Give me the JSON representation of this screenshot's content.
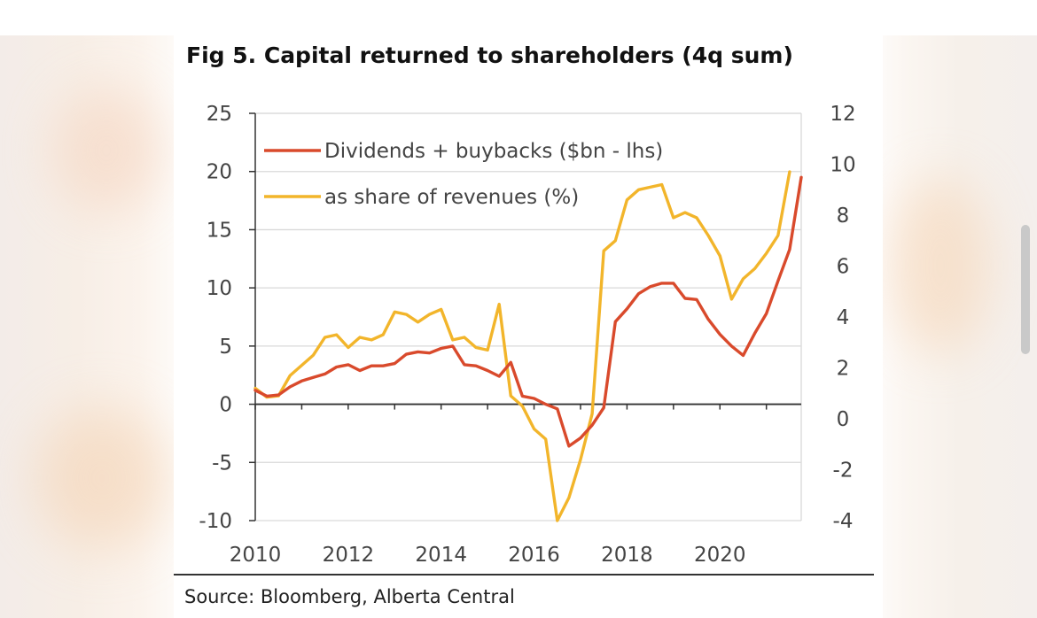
{
  "chart_data": {
    "type": "line",
    "title": "Fig 5. Capital returned to shareholders (4q sum)",
    "source": "Source: Bloomberg, Alberta Central",
    "x_axis": {
      "range": [
        2010,
        2021.75
      ],
      "tick_labels": [
        "2010",
        "2012",
        "2014",
        "2016",
        "2018",
        "2020"
      ],
      "tick_values": [
        2010,
        2012,
        2014,
        2016,
        2018,
        2020
      ]
    },
    "y_axis_left": {
      "range": [
        -10,
        25
      ],
      "tick_labels": [
        "-10",
        "-5",
        "0",
        "5",
        "10",
        "15",
        "20",
        "25"
      ],
      "tick_values": [
        -10,
        -5,
        0,
        5,
        10,
        15,
        20,
        25
      ]
    },
    "y_axis_right": {
      "range": [
        -4,
        12
      ],
      "tick_labels": [
        "-4",
        "-2",
        "0",
        "2",
        "4",
        "6",
        "8",
        "10",
        "12"
      ],
      "tick_values": [
        -4,
        -2,
        0,
        2,
        4,
        6,
        8,
        10,
        12
      ]
    },
    "legend_position": "top-left",
    "series": [
      {
        "name": "Dividends + buybacks ($bn - lhs)",
        "axis": "left",
        "color": "#d94a2c",
        "points": [
          [
            2010.0,
            1.2
          ],
          [
            2010.25,
            0.7
          ],
          [
            2010.5,
            0.8
          ],
          [
            2010.75,
            1.5
          ],
          [
            2011.0,
            2.0
          ],
          [
            2011.25,
            2.3
          ],
          [
            2011.5,
            2.6
          ],
          [
            2011.75,
            3.2
          ],
          [
            2012.0,
            3.4
          ],
          [
            2012.25,
            2.9
          ],
          [
            2012.5,
            3.3
          ],
          [
            2012.75,
            3.3
          ],
          [
            2013.0,
            3.5
          ],
          [
            2013.25,
            4.3
          ],
          [
            2013.5,
            4.5
          ],
          [
            2013.75,
            4.4
          ],
          [
            2014.0,
            4.8
          ],
          [
            2014.25,
            5.0
          ],
          [
            2014.5,
            3.4
          ],
          [
            2014.75,
            3.3
          ],
          [
            2015.0,
            2.9
          ],
          [
            2015.25,
            2.4
          ],
          [
            2015.5,
            3.6
          ],
          [
            2015.75,
            0.7
          ],
          [
            2016.0,
            0.5
          ],
          [
            2016.25,
            0.0
          ],
          [
            2016.5,
            -0.4
          ],
          [
            2016.75,
            -3.6
          ],
          [
            2017.0,
            -2.9
          ],
          [
            2017.25,
            -1.8
          ],
          [
            2017.5,
            -0.3
          ],
          [
            2017.75,
            7.1
          ],
          [
            2018.0,
            8.2
          ],
          [
            2018.25,
            9.5
          ],
          [
            2018.5,
            10.1
          ],
          [
            2018.75,
            10.4
          ],
          [
            2019.0,
            10.4
          ],
          [
            2019.25,
            9.1
          ],
          [
            2019.5,
            9.0
          ],
          [
            2019.75,
            7.3
          ],
          [
            2020.0,
            6.0
          ],
          [
            2020.25,
            5.0
          ],
          [
            2020.5,
            4.2
          ],
          [
            2020.75,
            6.1
          ],
          [
            2021.0,
            7.8
          ],
          [
            2021.25,
            10.6
          ],
          [
            2021.5,
            13.3
          ],
          [
            2021.75,
            19.5
          ]
        ]
      },
      {
        "name": "as share of revenues (%)",
        "axis": "right",
        "color": "#f2b52b",
        "points": [
          [
            2010.0,
            1.2
          ],
          [
            2010.25,
            0.85
          ],
          [
            2010.5,
            0.9
          ],
          [
            2010.75,
            1.7
          ],
          [
            2011.0,
            2.1
          ],
          [
            2011.25,
            2.5
          ],
          [
            2011.5,
            3.2
          ],
          [
            2011.75,
            3.3
          ],
          [
            2012.0,
            2.8
          ],
          [
            2012.25,
            3.2
          ],
          [
            2012.5,
            3.1
          ],
          [
            2012.75,
            3.3
          ],
          [
            2013.0,
            4.2
          ],
          [
            2013.25,
            4.1
          ],
          [
            2013.5,
            3.8
          ],
          [
            2013.75,
            4.1
          ],
          [
            2014.0,
            4.3
          ],
          [
            2014.25,
            3.1
          ],
          [
            2014.5,
            3.2
          ],
          [
            2014.75,
            2.8
          ],
          [
            2015.0,
            2.7
          ],
          [
            2015.25,
            4.5
          ],
          [
            2015.5,
            0.9
          ],
          [
            2015.75,
            0.5
          ],
          [
            2016.0,
            -0.4
          ],
          [
            2016.25,
            -0.8
          ],
          [
            2016.5,
            -4.0
          ],
          [
            2016.75,
            -3.1
          ],
          [
            2017.0,
            -1.6
          ],
          [
            2017.25,
            0.2
          ],
          [
            2017.5,
            6.6
          ],
          [
            2017.75,
            7.0
          ],
          [
            2018.0,
            8.6
          ],
          [
            2018.25,
            9.0
          ],
          [
            2018.5,
            9.1
          ],
          [
            2018.75,
            9.2
          ],
          [
            2019.0,
            7.9
          ],
          [
            2019.25,
            8.1
          ],
          [
            2019.5,
            7.9
          ],
          [
            2019.75,
            7.2
          ],
          [
            2020.0,
            6.4
          ],
          [
            2020.25,
            4.7
          ],
          [
            2020.5,
            5.5
          ],
          [
            2020.75,
            5.9
          ],
          [
            2021.0,
            6.5
          ],
          [
            2021.25,
            7.2
          ],
          [
            2021.5,
            9.7
          ]
        ]
      }
    ]
  }
}
